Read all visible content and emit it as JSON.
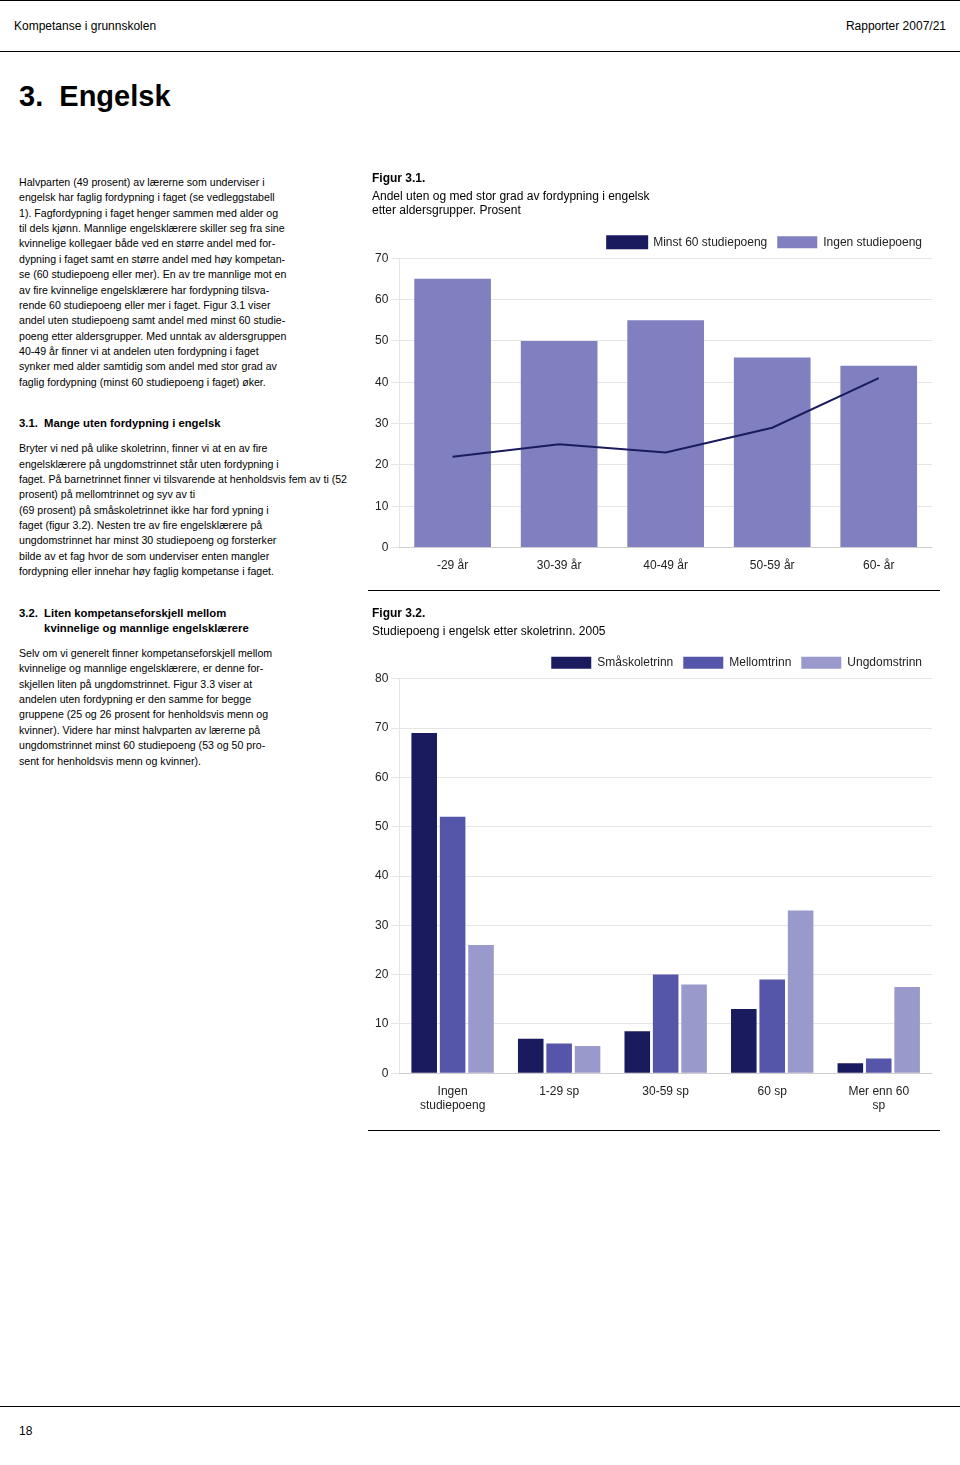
{
  "header_text": "Kompetanse i grunnskolen",
  "header_right": "Rapporter 2007/21",
  "section_title": "3.  Engelsk",
  "sections": [
    {
      "text": "Halvparten (49 prosent) av lærerne som underviser i\nengelsk har faglig fordypning i faget (se vedleggstabell\n1). Fagfordypning i faget henger sammen med alder og\ntil dels kjønn. Mannlige engelsklærere skiller seg fra sine\nkvinnelige kollegaer både ved en større andel med for-\ndypning i faget samt en større andel med høy kompetan-\nse (60 studiepoeng eller mer). En av tre mannlige mot en\nav fire kvinnelige engelsklærere har fordypning tilsva-\nrende 60 studiepoeng eller mer i faget. Figur 3.1 viser\nandel uten studiepoeng samt andel med minst 60 studie-\npoeng etter aldersgrupper. Med unntak av aldersgruppen\n40-49 år finner vi at andelen uten fordypning i faget\nsynker med alder samtidig som andel med stor grad av\nfaglig fordypning (minst 60 studiepoeng i faget) øker."
    },
    {
      "title": "3.1.  Mange uten fordypning i engelsk",
      "text": "Bryter vi ned på ulike skoletrinn, finner vi at en av fire\nengelsklærere på ungdomstrinnet står uten fordypning i\nfaget. På barnetrinnet finner vi tilsvarende at henholdsvis fem av ti (52 prosent) på mellomtrinnet og syv av ti\n(69 prosent) på småskoletrinnet ikke har ford ypning i\nfaget (figur 3.2). Nesten tre av fire engelsklærere på\nungdomstrinnet har minst 30 studiepoeng og forsterker\nbilde av et fag hvor de som underviser enten mangler\nfordypning eller innehar høy faglig kompetanse i faget."
    },
    {
      "title": "3.2.  Liten kompetanseforskjell mellom\n        kvinnelige og mannlige engelsklærere",
      "text": "Selv om vi generelt finner kompetanseforskjell mellom\nkvinnelige og mannlige engelsklærere, er denne for-\nskjellen liten på ungdomstrinnet. Figur 3.3 viser at\nandelen uten fordypning er den samme for begge\ngruppene (25 og 26 prosent for henholdsvis menn og\nkvinner). Videre har minst halvparten av lærerne på\nungdomstrinnet minst 60 studiepoeng (53 og 50 pro-\nsent for henholdsvis menn og kvinner)."
    }
  ],
  "footer_text": "18",
  "chart_data": [
    {
      "type": "bar",
      "title": "Figur 3.1.",
      "subtitle": "Andel uten og med stor grad av fordypning i engelsk\netter aldersgrupper. Prosent",
      "categories": [
        "-29 år",
        "30-39 år",
        "40-49 år",
        "50-59 år",
        "60- år"
      ],
      "series": [
        {
          "name": "Ingen studiepoeng",
          "type": "bar",
          "color": "#8080c0",
          "values": [
            65,
            50,
            55,
            46,
            44
          ]
        },
        {
          "name": "Minst 60 studiepoeng",
          "type": "line",
          "color": "#1a1a5e",
          "marker": "none",
          "values": [
            22,
            25,
            23,
            29,
            41
          ]
        }
      ],
      "ylim": [
        0,
        70
      ],
      "yticks": [
        0,
        10,
        20,
        30,
        40,
        50,
        60,
        70
      ],
      "grid": true,
      "legend": "upper right"
    },
    {
      "type": "bar",
      "title": "Figur 3.2.",
      "subtitle": "Studiepoeng i engelsk etter skoletrinn. 2005",
      "categories": [
        "Ingen\nstudiepoeng",
        "1-29 sp",
        "30-59 sp",
        "60 sp",
        "Mer enn 60\nsp"
      ],
      "series": [
        {
          "name": "Småskoletrinn",
          "color": "#1a1a5e",
          "values": [
            69,
            7,
            8.5,
            13,
            2
          ]
        },
        {
          "name": "Mellomtrinn",
          "color": "#5555aa",
          "values": [
            52,
            6,
            20,
            19,
            3
          ]
        },
        {
          "name": "Ungdomstrinn",
          "color": "#9999cc",
          "values": [
            26,
            5.5,
            18,
            33,
            17.5
          ]
        }
      ],
      "ylim": [
        0,
        80
      ],
      "yticks": [
        0,
        10,
        20,
        30,
        40,
        50,
        60,
        70,
        80
      ],
      "grid": true,
      "legend": "upper right"
    }
  ]
}
